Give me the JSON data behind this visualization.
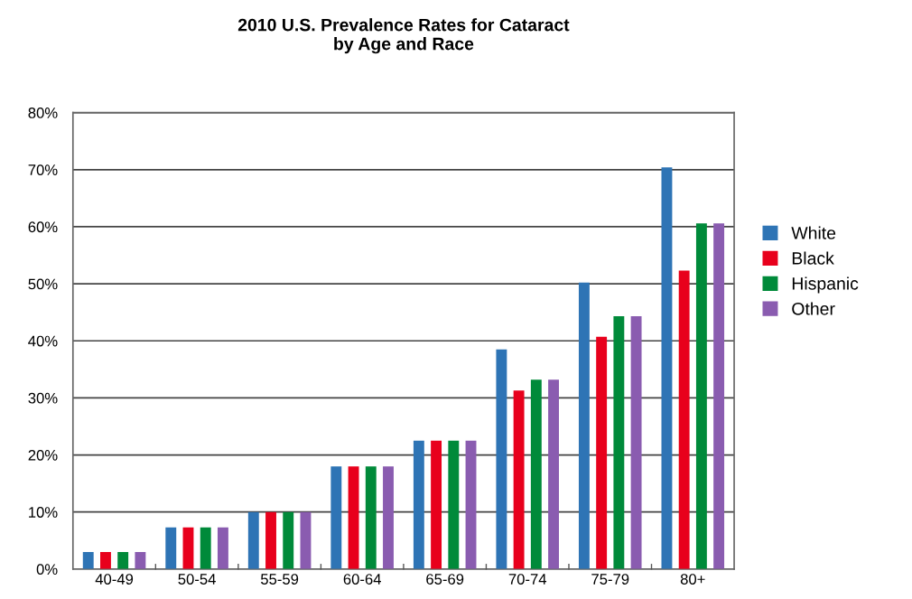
{
  "chart_data": {
    "type": "bar",
    "title": "2010 U.S. Prevalence Rates for Cataract\nby Age and Race",
    "categories": [
      "40-49",
      "50-54",
      "55-59",
      "60-64",
      "65-69",
      "70-74",
      "75-79",
      "80+"
    ],
    "series": [
      {
        "name": "White",
        "color": "#2e74b5",
        "values": [
          3,
          7.3,
          10,
          18,
          22.5,
          38.5,
          50.2,
          70.4
        ]
      },
      {
        "name": "Black",
        "color": "#e8001c",
        "values": [
          3,
          7.3,
          10,
          18,
          22.5,
          31.3,
          40.7,
          52.3
        ]
      },
      {
        "name": "Hispanic",
        "color": "#008a3a",
        "values": [
          3,
          7.3,
          10,
          18,
          22.5,
          33.2,
          44.3,
          60.6
        ]
      },
      {
        "name": "Other",
        "color": "#8a5cb0",
        "values": [
          3,
          7.3,
          10,
          18,
          22.5,
          33.2,
          44.3,
          60.6
        ]
      }
    ],
    "ylim": [
      0,
      80
    ],
    "yticks": [
      {
        "value": 0,
        "label": "0%"
      },
      {
        "value": 10,
        "label": "10%"
      },
      {
        "value": 20,
        "label": "20%"
      },
      {
        "value": 30,
        "label": "30%"
      },
      {
        "value": 40,
        "label": "40%"
      },
      {
        "value": 50,
        "label": "50%"
      },
      {
        "value": 60,
        "label": "60%"
      },
      {
        "value": 70,
        "label": "70%"
      },
      {
        "value": 80,
        "label": "80%"
      }
    ],
    "grid": "y",
    "legend": "right"
  }
}
